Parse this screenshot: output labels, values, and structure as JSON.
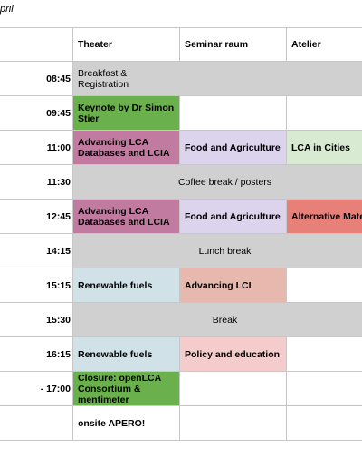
{
  "caption": "pril",
  "header": {
    "theater": "Theater",
    "seminar": "Seminar raum",
    "atelier": "Atelier"
  },
  "rows": [
    {
      "time": "08:45",
      "theater": "Breakfast & Registration"
    },
    {
      "time": "09:45",
      "theater": "Keynote by Dr Simon Stier"
    },
    {
      "time": "11:00",
      "theater": "Advancing LCA Databases and LCIA",
      "seminar": "Food and Agriculture",
      "atelier": "LCA in Cities"
    },
    {
      "time": "11:30",
      "span": "Coffee break / posters"
    },
    {
      "time": "12:45",
      "theater": "Advancing LCA Databases and LCIA",
      "seminar": "Food and Agriculture",
      "atelier": "Alternative Mate"
    },
    {
      "time": "14:15",
      "span": "Lunch break"
    },
    {
      "time": "15:15",
      "theater": "Renewable fuels",
      "seminar": "Advancing LCI"
    },
    {
      "time": "15:30",
      "span": "Break"
    },
    {
      "time": "16:15",
      "theater": "Renewable fuels",
      "seminar": "Policy and education"
    },
    {
      "time": "- 17:00",
      "theater": "Closure: openLCA Consortium & mentimeter"
    },
    {
      "time": "",
      "theater": "onsite APERO!"
    }
  ],
  "colors": {
    "grey": "#d0d0d0",
    "green": "#6ab04c",
    "mauve": "#c27ba0",
    "lavender": "#dcd3ec",
    "mint": "#d9ead3",
    "salmon": "#e8807a",
    "lightblue": "#d0e2e8",
    "peach": "#e6b8ae",
    "pink": "#f4cccc"
  }
}
